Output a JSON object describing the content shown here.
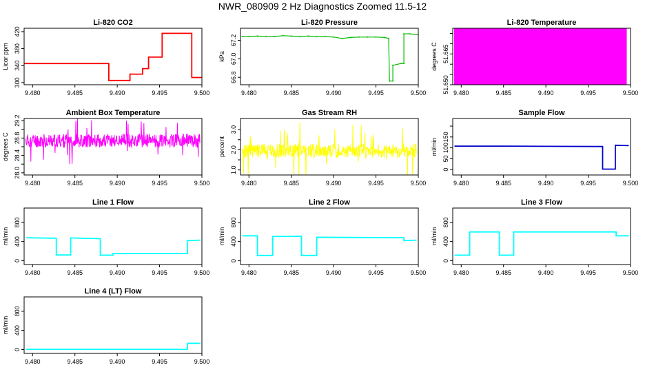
{
  "title": "NWR_080909  2 Hz Diagnostics Zoomed 11.5-12",
  "chart_data": [
    {
      "type": "line",
      "title": "Li-820 CO2",
      "ylabel": "Licor ppm",
      "color": "#ff0000",
      "xlim": [
        9.479,
        9.5
      ],
      "ylim": [
        295,
        428
      ],
      "xticks": [
        9.48,
        9.485,
        9.49,
        9.495,
        9.5
      ],
      "xtick_labels": [
        "9.480",
        "9.485",
        "9.490",
        "9.495",
        "9.500"
      ],
      "yticks": [
        300,
        340,
        380,
        420
      ],
      "ytick_labels": [
        "300",
        "340",
        "380",
        "420"
      ],
      "series": [
        {
          "style": "step",
          "points": [
            [
              9.479,
              345
            ],
            [
              9.489,
              345
            ],
            [
              9.489,
              305
            ],
            [
              9.4915,
              305
            ],
            [
              9.4915,
              320
            ],
            [
              9.493,
              320
            ],
            [
              9.493,
              333
            ],
            [
              9.4937,
              333
            ],
            [
              9.4937,
              360
            ],
            [
              9.4953,
              360
            ],
            [
              9.4953,
              416
            ],
            [
              9.4988,
              416
            ],
            [
              9.4988,
              312
            ],
            [
              9.5,
              312
            ]
          ]
        }
      ]
    },
    {
      "type": "line",
      "title": "Li-820 Pressure",
      "ylabel": "kPa",
      "color": "#00bb00",
      "xlim": [
        9.479,
        9.5
      ],
      "ylim": [
        66.72,
        67.33
      ],
      "xticks": [
        9.48,
        9.485,
        9.49,
        9.495,
        9.5
      ],
      "xtick_labels": [
        "9.480",
        "9.485",
        "9.490",
        "9.495",
        "9.500"
      ],
      "yticks": [
        66.8,
        67.0,
        67.2
      ],
      "ytick_labels": [
        "66.8",
        "67.0",
        "67.2"
      ],
      "series": [
        {
          "style": "points",
          "points": [
            [
              9.4792,
              67.24
            ],
            [
              9.48,
              67.24
            ],
            [
              9.481,
              67.245
            ],
            [
              9.482,
              67.24
            ],
            [
              9.483,
              67.24
            ],
            [
              9.484,
              67.25
            ],
            [
              9.485,
              67.245
            ],
            [
              9.486,
              67.24
            ],
            [
              9.487,
              67.245
            ],
            [
              9.488,
              67.24
            ],
            [
              9.489,
              67.24
            ],
            [
              9.49,
              67.235
            ],
            [
              9.491,
              67.22
            ],
            [
              9.492,
              67.23
            ],
            [
              9.493,
              67.235
            ],
            [
              9.494,
              67.235
            ],
            [
              9.495,
              67.235
            ],
            [
              9.496,
              67.23
            ],
            [
              9.4965,
              67.22
            ],
            [
              9.4966,
              66.76
            ],
            [
              9.497,
              66.76
            ],
            [
              9.497,
              66.93
            ],
            [
              9.498,
              66.95
            ],
            [
              9.4983,
              66.95
            ],
            [
              9.4983,
              67.27
            ],
            [
              9.499,
              67.27
            ],
            [
              9.5,
              67.26
            ]
          ]
        }
      ]
    },
    {
      "type": "line",
      "title": "Li-820 Temperature",
      "ylabel": "degrees C",
      "color": "#ff00ff",
      "xlim": [
        9.479,
        9.5
      ],
      "ylim": [
        51.65,
        51.6775
      ],
      "xticks": [
        9.48,
        9.485,
        9.49,
        9.495,
        9.5
      ],
      "xtick_labels": [
        "9.480",
        "9.485",
        "9.490",
        "9.495",
        "9.500"
      ],
      "yticks": [
        51.65,
        51.655,
        51.66,
        51.665,
        51.67,
        51.675
      ],
      "ytick_labels": [
        "51.650",
        "",
        "",
        "51.665",
        "",
        ""
      ],
      "series": [
        {
          "style": "binary",
          "low": 51.65,
          "high": 51.6775,
          "x_range": [
            9.4792,
            9.4995
          ]
        }
      ]
    },
    {
      "type": "line",
      "title": "Ambient Box Temperature",
      "ylabel": "degrees C",
      "color": "#ff00ff",
      "xlim": [
        9.479,
        9.5
      ],
      "ylim": [
        27.95,
        29.25
      ],
      "xticks": [
        9.48,
        9.485,
        9.49,
        9.495,
        9.5
      ],
      "xtick_labels": [
        "9.480",
        "9.485",
        "9.490",
        "9.495",
        "9.500"
      ],
      "yticks": [
        28.0,
        28.2,
        28.4,
        28.6,
        28.8,
        29.0,
        29.2
      ],
      "ytick_labels": [
        "28.0",
        "",
        "28.4",
        "",
        "28.8",
        "",
        "29.2"
      ],
      "series": [
        {
          "style": "noise",
          "x_range": [
            9.4792,
            9.4998
          ],
          "mean": 28.74,
          "amp": 0.16,
          "spike": 0.55,
          "seed": 11
        }
      ]
    },
    {
      "type": "line",
      "title": "Gas Stream RH",
      "ylabel": "percent",
      "color": "#ffff00",
      "xlim": [
        9.479,
        9.5
      ],
      "ylim": [
        0.75,
        3.55
      ],
      "xticks": [
        9.48,
        9.485,
        9.49,
        9.495,
        9.5
      ],
      "xtick_labels": [
        "9.480",
        "9.485",
        "9.490",
        "9.495",
        "9.500"
      ],
      "yticks": [
        1.0,
        1.5,
        2.0,
        2.5,
        3.0
      ],
      "ytick_labels": [
        "1.0",
        "",
        "2.0",
        "",
        "3.0"
      ],
      "series": [
        {
          "style": "noise",
          "x_range": [
            9.4792,
            9.4998
          ],
          "mean": 1.95,
          "amp": 0.35,
          "spike": 1.5,
          "seed": 29
        }
      ]
    },
    {
      "type": "line",
      "title": "Sample Flow",
      "ylabel": "ml/min",
      "color": "#0000cc",
      "xlim": [
        9.479,
        9.5
      ],
      "ylim": [
        -25,
        235
      ],
      "xticks": [
        9.48,
        9.485,
        9.49,
        9.495,
        9.5
      ],
      "xtick_labels": [
        "9.480",
        "9.485",
        "9.490",
        "9.495",
        "9.500"
      ],
      "yticks": [
        0,
        50,
        100,
        150,
        200
      ],
      "ytick_labels": [
        "0",
        "50",
        "100",
        "150",
        ""
      ],
      "series": [
        {
          "style": "step",
          "points": [
            [
              9.4792,
              108
            ],
            [
              9.485,
              108
            ],
            [
              9.49,
              107
            ],
            [
              9.4967,
              106
            ],
            [
              9.4967,
              2
            ],
            [
              9.4982,
              2
            ],
            [
              9.4982,
              112
            ],
            [
              9.4998,
              110
            ]
          ]
        }
      ]
    },
    {
      "type": "line",
      "title": "Line 1 Flow",
      "ylabel": "ml/min",
      "color": "#00ffff",
      "xlim": [
        9.479,
        9.5
      ],
      "ylim": [
        -80,
        1100
      ],
      "xticks": [
        9.48,
        9.485,
        9.49,
        9.495,
        9.5
      ],
      "xtick_labels": [
        "9.480",
        "9.485",
        "9.490",
        "9.495",
        "9.500"
      ],
      "yticks": [
        0,
        400,
        800
      ],
      "ytick_labels": [
        "0",
        "400",
        "800"
      ],
      "series": [
        {
          "style": "step",
          "points": [
            [
              9.4792,
              480
            ],
            [
              9.4828,
              470
            ],
            [
              9.4828,
              120
            ],
            [
              9.4845,
              120
            ],
            [
              9.4845,
              475
            ],
            [
              9.488,
              460
            ],
            [
              9.488,
              115
            ],
            [
              9.4895,
              115
            ],
            [
              9.4895,
              150
            ],
            [
              9.4983,
              150
            ],
            [
              9.4983,
              420
            ],
            [
              9.4998,
              430
            ]
          ]
        }
      ]
    },
    {
      "type": "line",
      "title": "Line 2 Flow",
      "ylabel": "ml/min",
      "color": "#00ffff",
      "xlim": [
        9.479,
        9.5
      ],
      "ylim": [
        -80,
        1100
      ],
      "xticks": [
        9.48,
        9.485,
        9.49,
        9.495,
        9.5
      ],
      "xtick_labels": [
        "9.480",
        "9.485",
        "9.490",
        "9.495",
        "9.500"
      ],
      "yticks": [
        0,
        400,
        800
      ],
      "ytick_labels": [
        "0",
        "400",
        "800"
      ],
      "series": [
        {
          "style": "step",
          "points": [
            [
              9.4792,
              520
            ],
            [
              9.481,
              520
            ],
            [
              9.481,
              110
            ],
            [
              9.4828,
              110
            ],
            [
              9.4828,
              505
            ],
            [
              9.4862,
              510
            ],
            [
              9.4862,
              110
            ],
            [
              9.488,
              110
            ],
            [
              9.488,
              490
            ],
            [
              9.4983,
              480
            ],
            [
              9.4983,
              420
            ],
            [
              9.4998,
              430
            ]
          ]
        }
      ]
    },
    {
      "type": "line",
      "title": "Line 3 Flow",
      "ylabel": "ml/min",
      "color": "#00ffff",
      "xlim": [
        9.479,
        9.5
      ],
      "ylim": [
        -80,
        1100
      ],
      "xticks": [
        9.48,
        9.485,
        9.49,
        9.495,
        9.5
      ],
      "xtick_labels": [
        "9.480",
        "9.485",
        "9.490",
        "9.495",
        "9.500"
      ],
      "yticks": [
        0,
        400,
        800
      ],
      "ytick_labels": [
        "0",
        "400",
        "800"
      ],
      "series": [
        {
          "style": "step",
          "points": [
            [
              9.4792,
              115
            ],
            [
              9.481,
              115
            ],
            [
              9.481,
              600
            ],
            [
              9.4845,
              600
            ],
            [
              9.4845,
              115
            ],
            [
              9.4862,
              115
            ],
            [
              9.4862,
              600
            ],
            [
              9.4983,
              600
            ],
            [
              9.4983,
              520
            ],
            [
              9.4998,
              520
            ]
          ]
        }
      ]
    },
    {
      "type": "line",
      "title": "Line 4 (LT) Flow",
      "ylabel": "ml/min",
      "color": "#00ffff",
      "xlim": [
        9.479,
        9.5
      ],
      "ylim": [
        -80,
        1100
      ],
      "xticks": [
        9.48,
        9.485,
        9.49,
        9.495,
        9.5
      ],
      "xtick_labels": [
        "9.480",
        "9.485",
        "9.490",
        "9.495",
        "9.500"
      ],
      "yticks": [
        0,
        400,
        800
      ],
      "ytick_labels": [
        "0",
        "400",
        "800"
      ],
      "series": [
        {
          "style": "step",
          "points": [
            [
              9.4792,
              5
            ],
            [
              9.4983,
              5
            ],
            [
              9.4983,
              130
            ],
            [
              9.4998,
              130
            ]
          ]
        }
      ]
    }
  ]
}
